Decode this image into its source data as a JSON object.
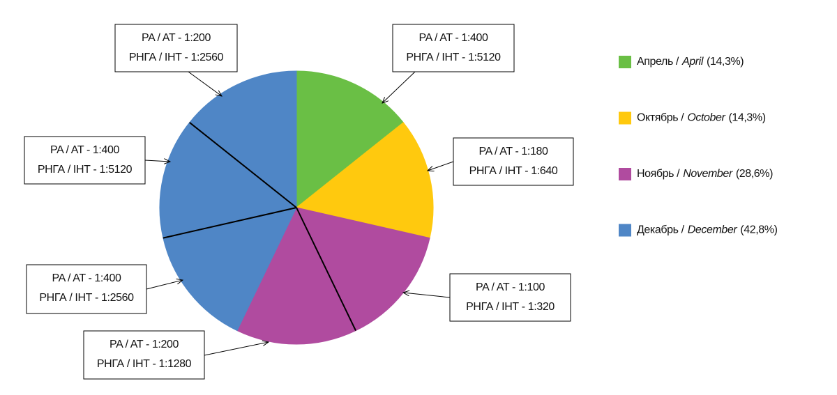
{
  "chart_data": {
    "type": "pie",
    "groups": [
      {
        "label": "Апрель /",
        "label_en": "April",
        "value": 14.3,
        "value_label": "(14,3%)",
        "color": "#6abf45"
      },
      {
        "label": "Октябрь /",
        "label_en": "October",
        "value": 14.3,
        "value_label": "(14,3%)",
        "color": "#ffc90e"
      },
      {
        "label": "Ноябрь /",
        "label_en": "November",
        "value": 28.6,
        "value_label": "(28,6%)",
        "color": "#b04b9f"
      },
      {
        "label": "Декабрь /",
        "label_en": "December",
        "value": 42.8,
        "value_label": "(42,8%)",
        "color": "#4f86c6"
      }
    ],
    "slices": [
      {
        "group": 0,
        "value": 14.3,
        "lines": [
          "PA / AT - 1:400",
          "РНГА / ІНТ - 1:5120"
        ]
      },
      {
        "group": 1,
        "value": 14.3,
        "lines": [
          "PA / AT - 1:180",
          "РНГА / ІНТ - 1:640"
        ]
      },
      {
        "group": 2,
        "value": 14.3,
        "lines": [
          "PA / AT - 1:100",
          "РНГА / ІНТ - 1:320"
        ]
      },
      {
        "group": 2,
        "value": 14.3,
        "lines": [
          "PA / AT - 1:200",
          "РНГА / ІНТ - 1:1280"
        ]
      },
      {
        "group": 3,
        "value": 14.3,
        "lines": [
          "PA / AT - 1:400",
          "РНГА / ІНТ - 1:2560"
        ]
      },
      {
        "group": 3,
        "value": 14.3,
        "lines": [
          "PA / AT - 1:400",
          "РНГА / ІНТ - 1:5120"
        ]
      },
      {
        "group": 3,
        "value": 14.3,
        "lines": [
          "PA / AT - 1:200",
          "РНГА / ІНТ - 1:2560"
        ]
      }
    ]
  }
}
